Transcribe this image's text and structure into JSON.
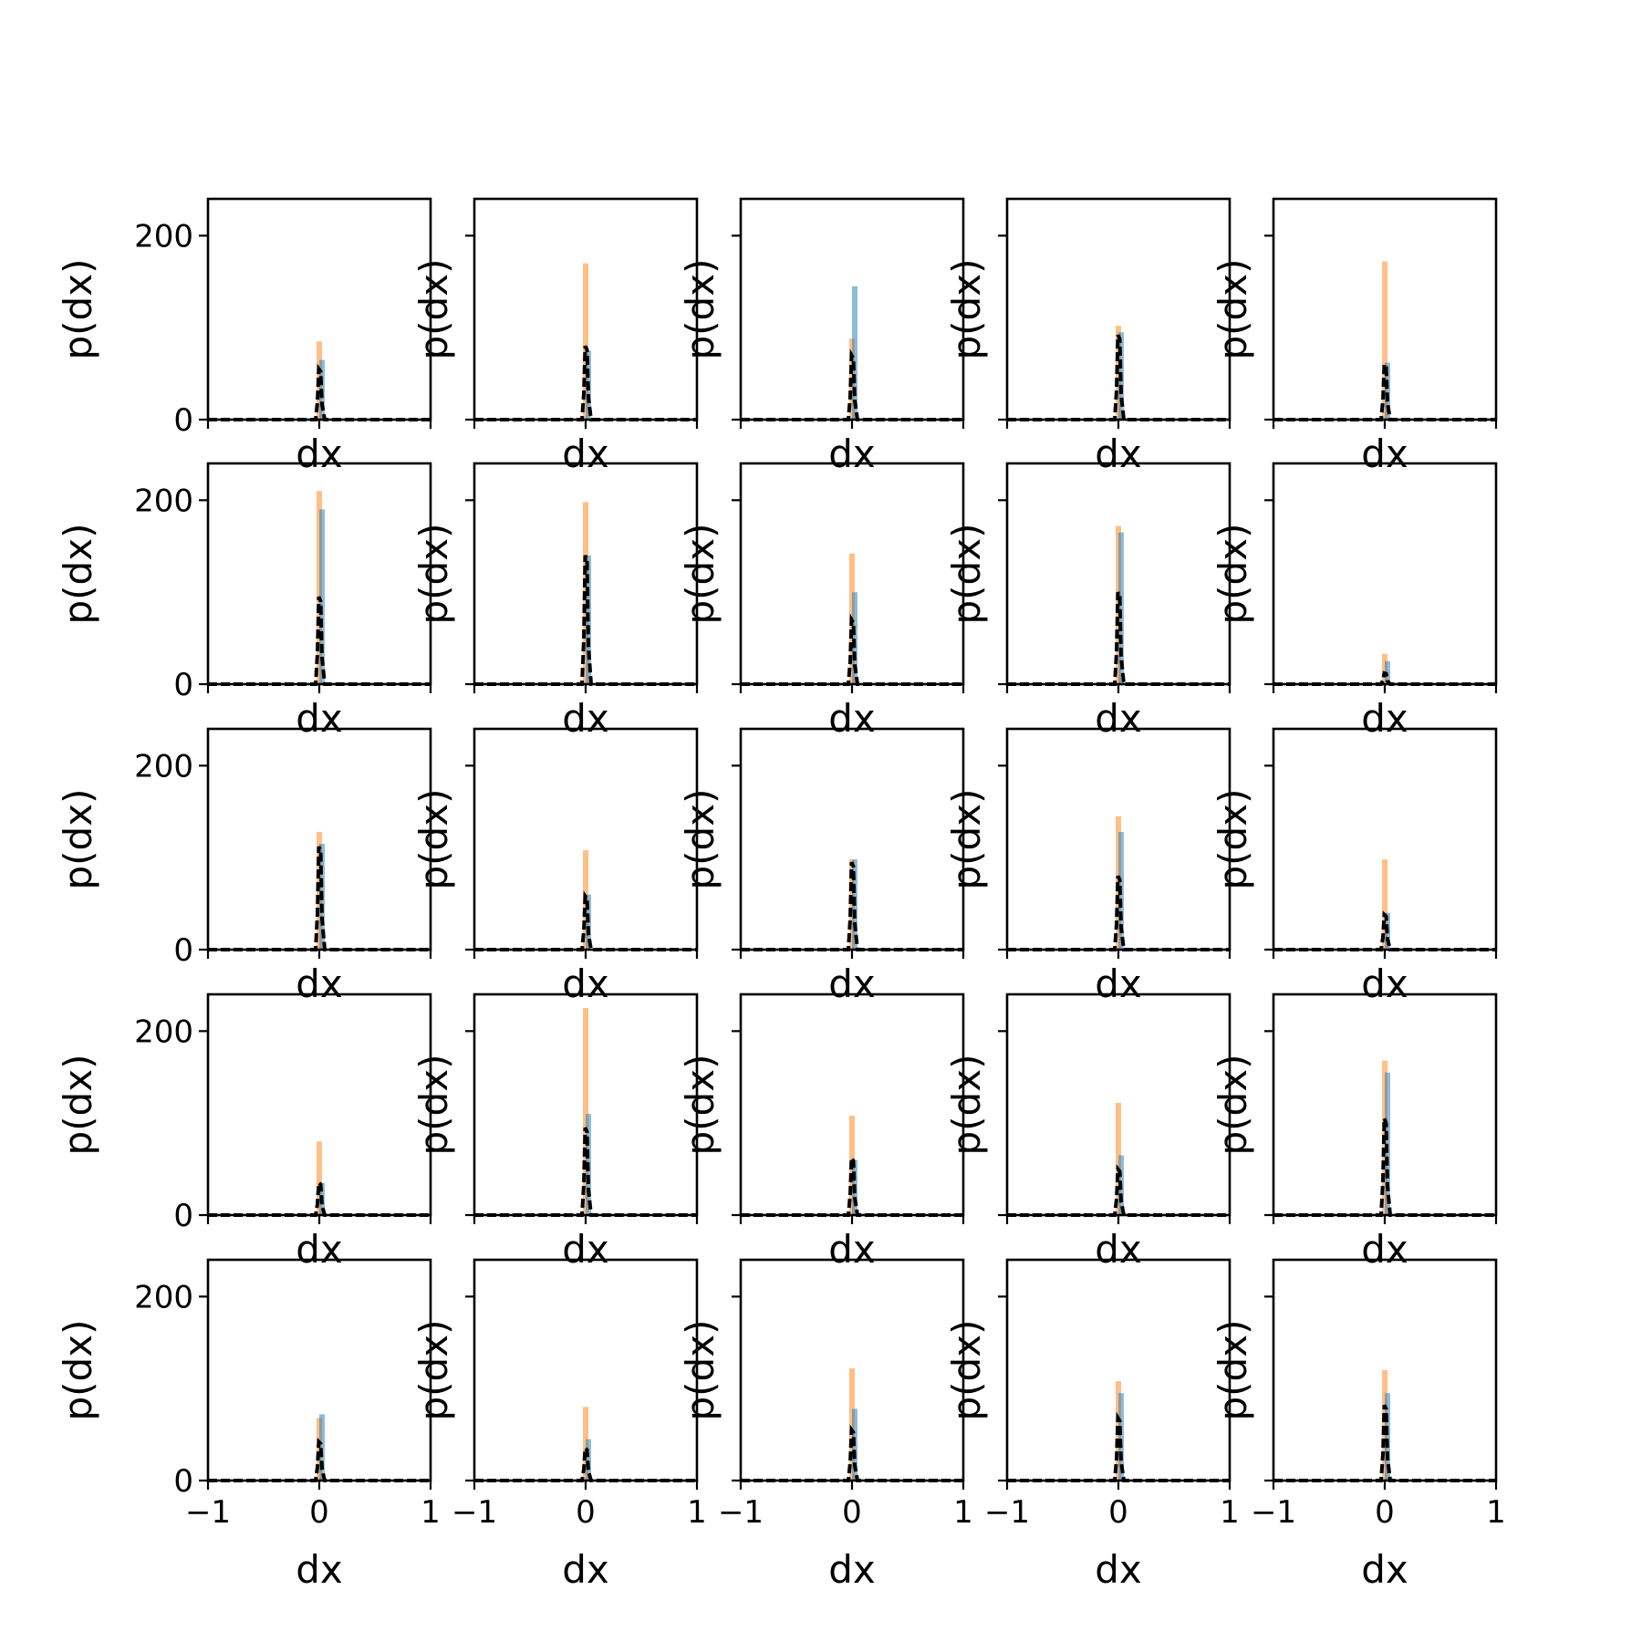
{
  "chart_data": {
    "type": "histogram-grid",
    "rows": 5,
    "cols": 5,
    "xlabel": "dx",
    "ylabel": "p(dx)",
    "xlim": [
      -1,
      1
    ],
    "ylim": [
      0,
      240
    ],
    "xticks": [
      -1,
      0,
      1
    ],
    "xtick_labels": [
      "−1",
      "0",
      "1"
    ],
    "yticks": [
      0,
      200
    ],
    "ytick_labels": [
      "0",
      "200"
    ],
    "colors": {
      "blue": "#1f77b4",
      "orange": "#ff7f0e",
      "black": "#000000"
    },
    "panels": [
      {
        "orange": 85,
        "blue": 65,
        "black": 55
      },
      {
        "orange": 170,
        "blue": 75,
        "black": 80
      },
      {
        "orange": 88,
        "blue": 145,
        "black": 70
      },
      {
        "orange": 102,
        "blue": 95,
        "black": 92
      },
      {
        "orange": 172,
        "blue": 62,
        "black": 60
      },
      {
        "orange": 210,
        "blue": 190,
        "black": 95
      },
      {
        "orange": 198,
        "blue": 140,
        "black": 140
      },
      {
        "orange": 142,
        "blue": 100,
        "black": 70
      },
      {
        "orange": 172,
        "blue": 165,
        "black": 100
      },
      {
        "orange": 33,
        "blue": 25,
        "black": 12
      },
      {
        "orange": 128,
        "blue": 115,
        "black": 112
      },
      {
        "orange": 108,
        "blue": 60,
        "black": 58
      },
      {
        "orange": 98,
        "blue": 98,
        "black": 95
      },
      {
        "orange": 145,
        "blue": 128,
        "black": 80
      },
      {
        "orange": 98,
        "blue": 40,
        "black": 38
      },
      {
        "orange": 80,
        "blue": 35,
        "black": 35
      },
      {
        "orange": 225,
        "blue": 110,
        "black": 95
      },
      {
        "orange": 108,
        "blue": 60,
        "black": 62
      },
      {
        "orange": 122,
        "blue": 65,
        "black": 50
      },
      {
        "orange": 168,
        "blue": 155,
        "black": 105
      },
      {
        "orange": 68,
        "blue": 72,
        "black": 42
      },
      {
        "orange": 80,
        "blue": 45,
        "black": 35
      },
      {
        "orange": 122,
        "blue": 78,
        "black": 55
      },
      {
        "orange": 108,
        "blue": 95,
        "black": 68
      },
      {
        "orange": 120,
        "blue": 95,
        "black": 82
      }
    ]
  }
}
